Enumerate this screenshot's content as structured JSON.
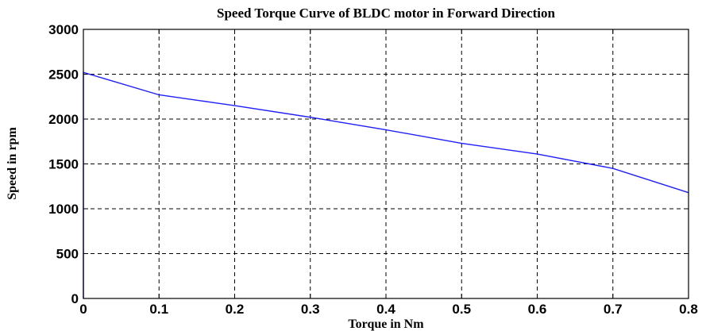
{
  "chart_data": {
    "type": "line",
    "title": "Speed Torque Curve of BLDC motor in Forward Direction",
    "xlabel": "Torque in Nm",
    "ylabel": "Speed in rpm",
    "xlim": [
      0,
      0.8
    ],
    "ylim": [
      0,
      3000
    ],
    "xticks": [
      "0",
      "0.1",
      "0.2",
      "0.3",
      "0.4",
      "0.5",
      "0.6",
      "0.7",
      "0.8"
    ],
    "yticks": [
      "0",
      "500",
      "1000",
      "1500",
      "2000",
      "2500",
      "3000"
    ],
    "grid": true,
    "series": [
      {
        "color": "#1f1fff",
        "x": [
          0,
          0,
          0.1,
          0.2,
          0.3,
          0.4,
          0.5,
          0.6,
          0.7,
          0.8
        ],
        "y": [
          0,
          2520,
          2270,
          2150,
          2020,
          1880,
          1730,
          1610,
          1450,
          1180
        ]
      }
    ]
  }
}
